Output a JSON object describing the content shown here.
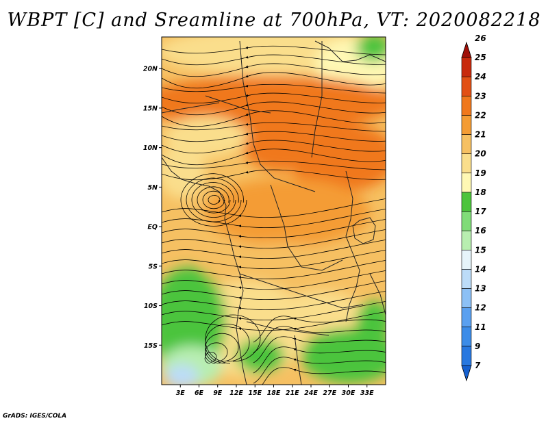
{
  "title": "WBPT [C] and Sreamline at 700hPa, VT: 2020082218",
  "credit": "GrADS: IGES/COLA",
  "map": {
    "lon_range": [
      0,
      36
    ],
    "lat_range": [
      -20,
      24
    ],
    "lat_ticks": [
      {
        "value": 20,
        "label": "20N"
      },
      {
        "value": 15,
        "label": "15N"
      },
      {
        "value": 10,
        "label": "10N"
      },
      {
        "value": 5,
        "label": "5N"
      },
      {
        "value": 0,
        "label": "EQ"
      },
      {
        "value": -5,
        "label": "5S"
      },
      {
        "value": -10,
        "label": "10S"
      },
      {
        "value": -15,
        "label": "15S"
      }
    ],
    "lon_ticks": [
      {
        "value": 3,
        "label": "3E"
      },
      {
        "value": 6,
        "label": "6E"
      },
      {
        "value": 9,
        "label": "9E"
      },
      {
        "value": 12,
        "label": "12E"
      },
      {
        "value": 15,
        "label": "15E"
      },
      {
        "value": 18,
        "label": "18E"
      },
      {
        "value": 21,
        "label": "21E"
      },
      {
        "value": 24,
        "label": "24E"
      },
      {
        "value": 27,
        "label": "27E"
      },
      {
        "value": 30,
        "label": "30E"
      },
      {
        "value": 33,
        "label": "33E"
      }
    ]
  },
  "colorbar": {
    "levels": [
      "7",
      "9",
      "11",
      "12",
      "13",
      "14",
      "15",
      "16",
      "17",
      "18",
      "19",
      "20",
      "21",
      "22",
      "23",
      "24",
      "25",
      "26"
    ],
    "colors": [
      "#1560d0",
      "#2878e0",
      "#3c8ce8",
      "#5aa0f0",
      "#8cc0f5",
      "#bcdcf8",
      "#e6f4fa",
      "#b8eeb0",
      "#80dc78",
      "#4cc43c",
      "#fff8b4",
      "#fade8c",
      "#f6c062",
      "#f49c34",
      "#f0781c",
      "#e25014",
      "#c82a0c",
      "#a01008"
    ]
  },
  "field_colors": {
    "light_green": "#b8eeb0",
    "green": "#4cc43c",
    "mid_green": "#80dc78",
    "light_blue": "#bcdcf8",
    "pale_yellow": "#fff8b4",
    "tan": "#fade8c",
    "orange_light": "#f6c062",
    "orange": "#f49c34",
    "dark_orange": "#f0781c",
    "red_orange": "#e25014"
  }
}
